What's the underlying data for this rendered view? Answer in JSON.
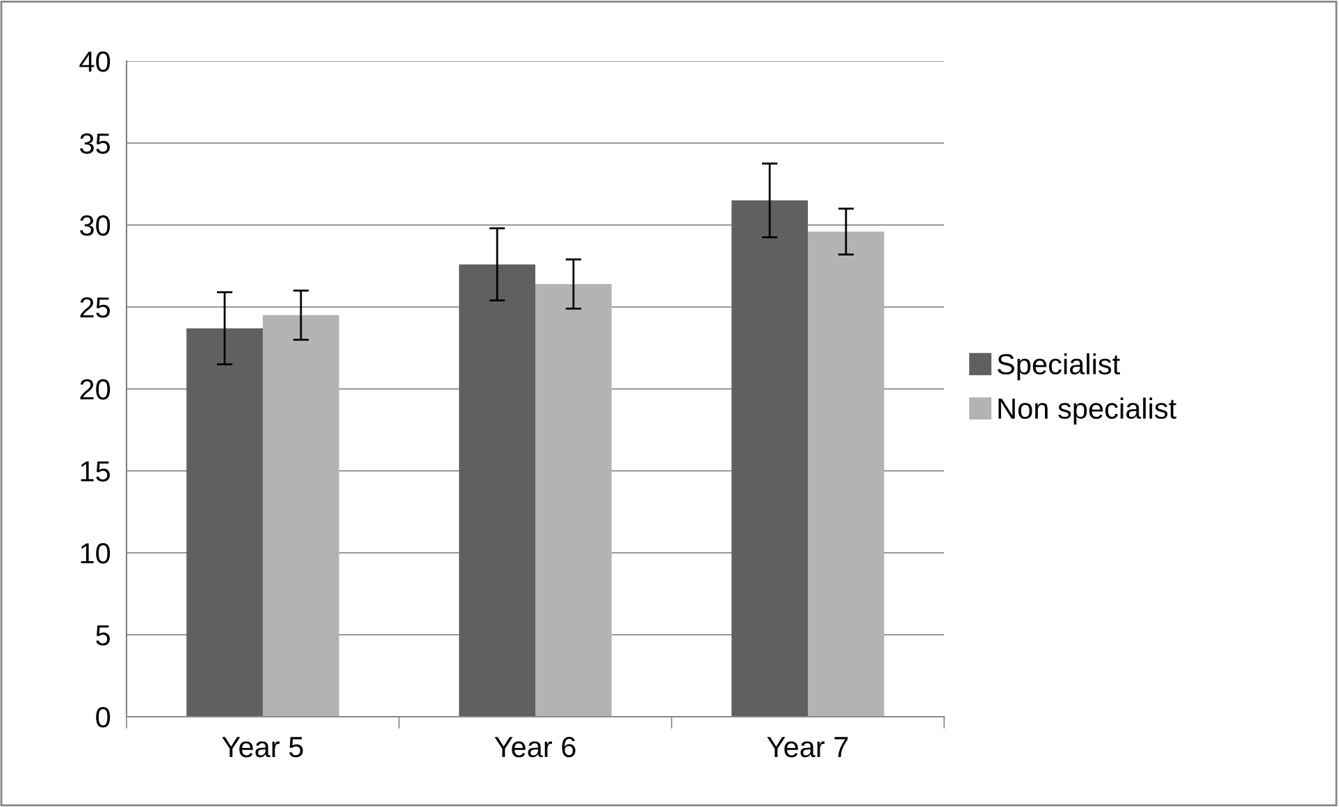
{
  "chart_data": {
    "type": "bar",
    "categories": [
      "Year 5",
      "Year 6",
      "Year 7"
    ],
    "series": [
      {
        "name": "Specialist",
        "color": "#606060",
        "values": [
          23.7,
          27.6,
          31.5
        ],
        "errors": [
          2.2,
          2.2,
          2.25
        ]
      },
      {
        "name": "Non specialist",
        "color": "#b3b3b3",
        "values": [
          24.5,
          26.4,
          29.6
        ],
        "errors": [
          1.5,
          1.5,
          1.4
        ]
      }
    ],
    "ylim": [
      0,
      40
    ],
    "yticks": [
      0,
      5,
      10,
      15,
      20,
      25,
      30,
      35,
      40
    ],
    "grid": "y",
    "legend": "right"
  }
}
